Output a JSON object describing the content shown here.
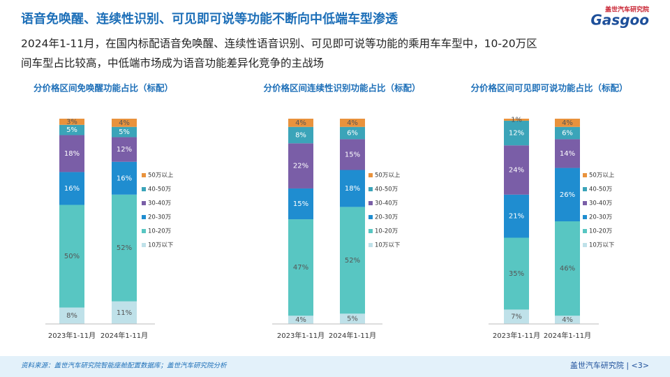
{
  "header": {
    "title": "语音免唤醒、连续性识别、可见即可说等功能不断向中低端车型渗透",
    "subtitle": [
      "2024年1-11月，在国内标配语音免唤醒、连续性语音识别、可见即可说等功能的乘用车车型中，10-20万区",
      "间车型占比较高，中低端市场成为语音功能差异化竞争的主战场"
    ],
    "logo_cn": "盖世汽车研究院",
    "logo_en": "Gasgoo"
  },
  "chart_data": [
    {
      "type": "stacked_bar",
      "title": "分价格区间免唤醒功能占比（标配）",
      "categories": [
        "2023年1-11月",
        "2024年1-11月"
      ],
      "ylim": [
        0,
        100
      ],
      "series": [
        {
          "name": "10万以下",
          "color": "#bfe1e9",
          "values": [
            8,
            11
          ],
          "value_labels": [
            "8%",
            "11%"
          ]
        },
        {
          "name": "10-20万",
          "color": "#58c6c2",
          "values": [
            50,
            52
          ],
          "value_labels": [
            "50%",
            "52%"
          ]
        },
        {
          "name": "20-30万",
          "color": "#1f8dd0",
          "values": [
            16,
            16
          ],
          "value_labels": [
            "16%",
            "16%"
          ]
        },
        {
          "name": "30-40万",
          "color": "#7a5ea7",
          "values": [
            18,
            12
          ],
          "value_labels": [
            "18%",
            "12%"
          ]
        },
        {
          "name": "40-50万",
          "color": "#3ba4b9",
          "values": [
            5,
            5
          ],
          "value_labels": [
            "5%",
            "5%"
          ]
        },
        {
          "name": "50万以上",
          "color": "#e9923c",
          "values": [
            3,
            4
          ],
          "value_labels": [
            "3%",
            "4%"
          ]
        }
      ]
    },
    {
      "type": "stacked_bar",
      "title": "分价格区间连续性识别功能占比（标配）",
      "categories": [
        "2023年1-11月",
        "2024年1-11月"
      ],
      "ylim": [
        0,
        100
      ],
      "series": [
        {
          "name": "10万以下",
          "color": "#bfe1e9",
          "values": [
            4,
            5
          ],
          "value_labels": [
            "4%",
            "5%"
          ]
        },
        {
          "name": "10-20万",
          "color": "#58c6c2",
          "values": [
            47,
            52
          ],
          "value_labels": [
            "47%",
            "52%"
          ]
        },
        {
          "name": "20-30万",
          "color": "#1f8dd0",
          "values": [
            15,
            18
          ],
          "value_labels": [
            "15%",
            "18%"
          ]
        },
        {
          "name": "30-40万",
          "color": "#7a5ea7",
          "values": [
            22,
            15
          ],
          "value_labels": [
            "22%",
            "15%"
          ]
        },
        {
          "name": "40-50万",
          "color": "#3ba4b9",
          "values": [
            8,
            6
          ],
          "value_labels": [
            "8%",
            "6%"
          ]
        },
        {
          "name": "50万以上",
          "color": "#e9923c",
          "values": [
            4,
            4
          ],
          "value_labels": [
            "4%",
            "4%"
          ]
        }
      ]
    },
    {
      "type": "stacked_bar",
      "title": "分价格区间可见即可说功能占比（标配）",
      "categories": [
        "2023年1-11月",
        "2024年1-11月"
      ],
      "ylim": [
        0,
        100
      ],
      "series": [
        {
          "name": "10万以下",
          "color": "#bfe1e9",
          "values": [
            7,
            4
          ],
          "value_labels": [
            "7%",
            "4%"
          ]
        },
        {
          "name": "10-20万",
          "color": "#58c6c2",
          "values": [
            35,
            46
          ],
          "value_labels": [
            "35%",
            "46%"
          ]
        },
        {
          "name": "20-30万",
          "color": "#1f8dd0",
          "values": [
            21,
            26
          ],
          "value_labels": [
            "21%",
            "26%"
          ]
        },
        {
          "name": "30-40万",
          "color": "#7a5ea7",
          "values": [
            24,
            14
          ],
          "value_labels": [
            "24%",
            "14%"
          ]
        },
        {
          "name": "40-50万",
          "color": "#3ba4b9",
          "values": [
            12,
            6
          ],
          "value_labels": [
            "12%",
            "6%"
          ]
        },
        {
          "name": "50万以上",
          "color": "#e9923c",
          "values": [
            1,
            4
          ],
          "value_labels": [
            "1%",
            "4%"
          ]
        }
      ]
    }
  ],
  "footer": {
    "source": "资料来源：盖世汽车研究院智能座舱配置数据库；盖世汽车研究院分析",
    "page_label": "盖世汽车研究院 | <3>"
  }
}
